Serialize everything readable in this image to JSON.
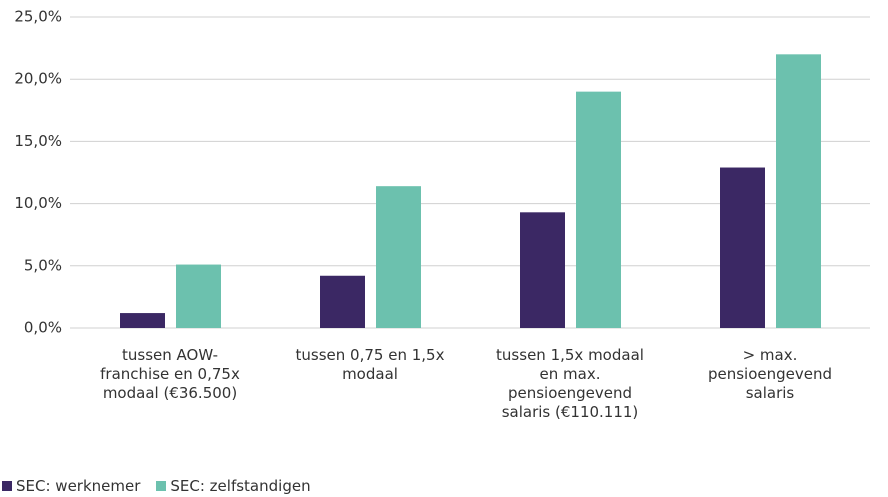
{
  "chart_data": {
    "type": "bar",
    "categories": [
      "tussen AOW-franchise en 0,75x modaal (€36.500)",
      "tussen 0,75 en 1,5x modaal",
      "tussen 1,5x modaal en max. pensioengevend salaris (€110.111)",
      "> max. pensioengevend salaris"
    ],
    "series": [
      {
        "name": "SEC: werknemer",
        "color": "#3b2864",
        "values": [
          1.2,
          4.2,
          9.3,
          12.9
        ]
      },
      {
        "name": "SEC: zelfstandigen",
        "color": "#6cc1ae",
        "values": [
          5.1,
          11.4,
          19.0,
          22.0
        ]
      }
    ],
    "ylim": [
      0,
      25
    ],
    "yticks": [
      {
        "value": 0,
        "label": "0,0%"
      },
      {
        "value": 5,
        "label": "5,0%"
      },
      {
        "value": 10,
        "label": "10,0%"
      },
      {
        "value": 15,
        "label": "15,0%"
      },
      {
        "value": 20,
        "label": "20,0%"
      },
      {
        "value": 25,
        "label": "25,0%"
      }
    ],
    "grid": true,
    "legend": "bottom-left"
  }
}
